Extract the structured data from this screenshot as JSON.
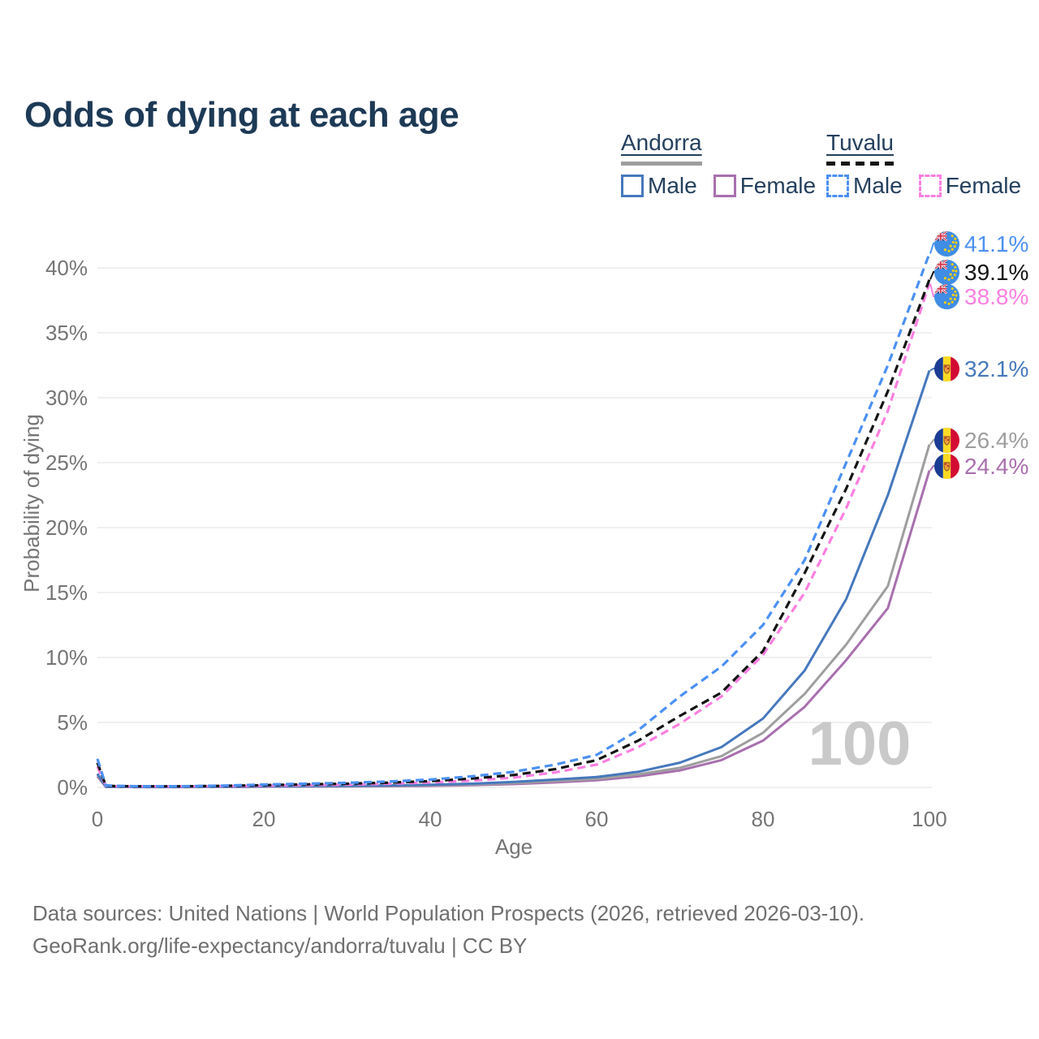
{
  "title": "Odds of dying at each age",
  "legend": {
    "groups": [
      {
        "country": "Andorra",
        "style": "solid",
        "color": "#9e9e9e",
        "items": [
          {
            "label": "Male",
            "color": "#4678bd",
            "dash": false
          },
          {
            "label": "Female",
            "color": "#a86fae",
            "dash": false
          }
        ]
      },
      {
        "country": "Tuvalu",
        "style": "dashed",
        "color": "#141414",
        "items": [
          {
            "label": "Male",
            "color": "#4b90f2",
            "dash": true
          },
          {
            "label": "Female",
            "color": "#fc7fe1",
            "dash": true
          }
        ]
      }
    ]
  },
  "chart_data": {
    "type": "line",
    "title": "Odds of dying at each age",
    "xlabel": "Age",
    "ylabel": "Probability of dying",
    "xlim": [
      0,
      100
    ],
    "ylim_pct": [
      0,
      42
    ],
    "xticks": [
      0,
      20,
      40,
      60,
      80,
      100
    ],
    "yticks_pct": [
      0,
      5,
      10,
      15,
      20,
      25,
      30,
      35,
      40
    ],
    "ytick_suffix": "%",
    "grid": true,
    "legend_position": "top-right",
    "watermark": "100",
    "ages": [
      0,
      1,
      2,
      5,
      10,
      15,
      20,
      25,
      30,
      35,
      40,
      45,
      50,
      55,
      60,
      65,
      70,
      75,
      80,
      85,
      90,
      95,
      100
    ],
    "series": [
      {
        "country": "Tuvalu",
        "group": "Male",
        "flag": "tuvalu",
        "color": "#4b90f2",
        "dashed": true,
        "end_label": "41.1%",
        "end_value_pct": 41.1,
        "values_pct": [
          2.2,
          0.16,
          0.12,
          0.09,
          0.09,
          0.13,
          0.22,
          0.28,
          0.35,
          0.45,
          0.6,
          0.85,
          1.2,
          1.75,
          2.5,
          4.4,
          7.0,
          9.3,
          12.5,
          17.5,
          25.0,
          32.5,
          41.1
        ]
      },
      {
        "country": "Tuvalu",
        "group": "Both sexes",
        "flag": "tuvalu",
        "color": "#141414",
        "dashed": true,
        "end_label": "39.1%",
        "end_value_pct": 39.1,
        "values_pct": [
          1.9,
          0.14,
          0.1,
          0.08,
          0.08,
          0.11,
          0.17,
          0.23,
          0.28,
          0.36,
          0.48,
          0.68,
          0.95,
          1.4,
          2.1,
          3.6,
          5.5,
          7.3,
          10.5,
          16.5,
          23.0,
          30.5,
          39.1
        ]
      },
      {
        "country": "Tuvalu",
        "group": "Female",
        "flag": "tuvalu",
        "color": "#fc7fe1",
        "dashed": true,
        "end_label": "38.8%",
        "end_value_pct": 38.8,
        "values_pct": [
          1.6,
          0.12,
          0.09,
          0.07,
          0.07,
          0.09,
          0.13,
          0.17,
          0.21,
          0.28,
          0.38,
          0.52,
          0.75,
          1.15,
          1.75,
          3.1,
          4.9,
          7.0,
          10.2,
          15.0,
          21.5,
          29.0,
          38.8
        ]
      },
      {
        "country": "Andorra",
        "group": "Male",
        "flag": "andorra",
        "color": "#4678bd",
        "dashed": false,
        "end_label": "32.1%",
        "end_value_pct": 32.1,
        "values_pct": [
          1.05,
          0.05,
          0.04,
          0.03,
          0.03,
          0.05,
          0.08,
          0.1,
          0.12,
          0.15,
          0.2,
          0.28,
          0.42,
          0.6,
          0.8,
          1.2,
          1.9,
          3.1,
          5.3,
          9.0,
          14.5,
          22.5,
          32.1
        ]
      },
      {
        "country": "Andorra",
        "group": "Both sexes",
        "flag": "andorra",
        "color": "#9e9e9e",
        "dashed": false,
        "end_label": "26.4%",
        "end_value_pct": 26.4,
        "values_pct": [
          0.95,
          0.045,
          0.035,
          0.027,
          0.027,
          0.04,
          0.06,
          0.08,
          0.09,
          0.12,
          0.16,
          0.22,
          0.33,
          0.48,
          0.65,
          1.0,
          1.5,
          2.4,
          4.2,
          7.2,
          11.0,
          15.5,
          26.4
        ]
      },
      {
        "country": "Andorra",
        "group": "Female",
        "flag": "andorra",
        "color": "#a86fae",
        "dashed": false,
        "end_label": "24.4%",
        "end_value_pct": 24.4,
        "values_pct": [
          0.85,
          0.04,
          0.03,
          0.022,
          0.022,
          0.03,
          0.05,
          0.06,
          0.07,
          0.09,
          0.12,
          0.17,
          0.25,
          0.38,
          0.55,
          0.85,
          1.3,
          2.1,
          3.6,
          6.2,
          9.8,
          13.8,
          24.4
        ]
      }
    ]
  },
  "footer": {
    "line1": "Data sources: United Nations | World Population Prospects (2026, retrieved 2026-03-10).",
    "line2": "GeoRank.org/life-expectancy/andorra/tuvalu | CC BY"
  }
}
